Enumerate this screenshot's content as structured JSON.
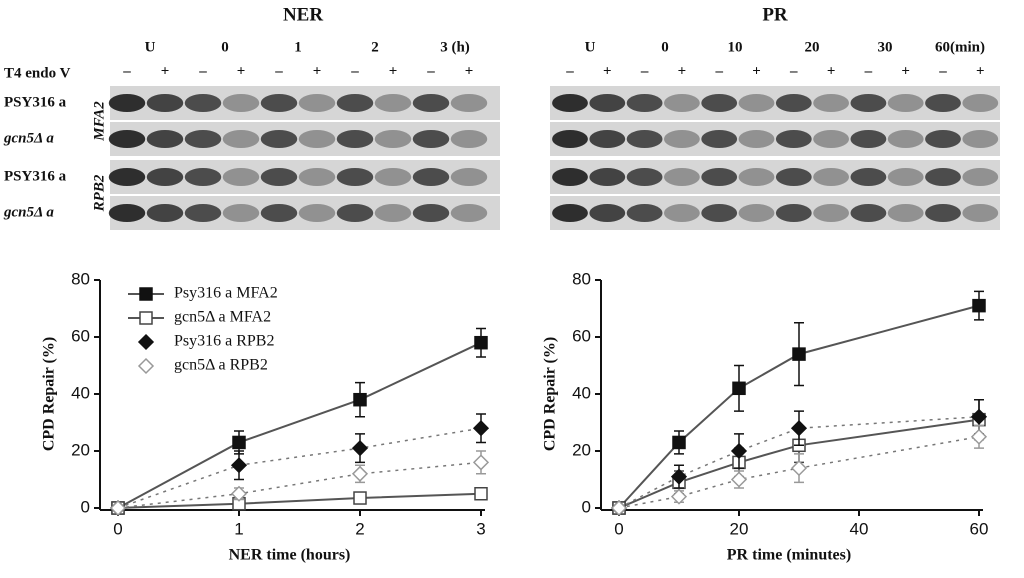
{
  "gels": {
    "treatment": {
      "label": "T4 endo V",
      "minus": "–",
      "plus": "+"
    },
    "rows": [
      "PSY316 a",
      "gcn5Δ a",
      "PSY316 a",
      "gcn5Δ a"
    ],
    "genes": [
      "MFA2",
      "RPB2"
    ],
    "panels": [
      {
        "title": "NER",
        "lanes": [
          "U",
          "0",
          "1",
          "2",
          "3 (h)"
        ]
      },
      {
        "title": "PR",
        "lanes": [
          "U",
          "0",
          "10",
          "20",
          "30",
          "60(min)"
        ]
      }
    ]
  },
  "chart_data": [
    {
      "type": "line",
      "xlabel": "NER time (hours)",
      "ylabel": "CPD Repair (%)",
      "x": [
        0,
        1,
        2,
        3
      ],
      "xlim": [
        0,
        3
      ],
      "xticks": [
        0,
        1,
        2,
        3
      ],
      "ylim": [
        0,
        80
      ],
      "yticks": [
        0,
        20,
        40,
        60,
        80
      ],
      "legend": "upper left",
      "series": [
        {
          "name": "Psy316 a MFA2",
          "color": "#111111",
          "marker": "square",
          "filled": true,
          "line": "solid",
          "values": [
            0,
            23,
            38,
            58
          ],
          "errors": [
            0,
            4,
            6,
            5
          ]
        },
        {
          "name": "gcn5Δ a MFA2",
          "color": "#444444",
          "marker": "square",
          "filled": false,
          "line": "solid",
          "values": [
            0,
            1.5,
            3.5,
            5
          ],
          "errors": [
            0,
            2,
            2,
            2
          ]
        },
        {
          "name": "Psy316 a RPB2",
          "color": "#111111",
          "marker": "diamond",
          "filled": true,
          "line": "dotted",
          "values": [
            0,
            15,
            21,
            28
          ],
          "errors": [
            0,
            5,
            5,
            5
          ]
        },
        {
          "name": "gcn5Δ a RPB2",
          "color": "#999999",
          "marker": "diamond",
          "filled": false,
          "line": "dotted",
          "values": [
            0,
            5,
            12,
            16
          ],
          "errors": [
            0,
            2,
            3,
            4
          ]
        }
      ]
    },
    {
      "type": "line",
      "xlabel": "PR time (minutes)",
      "ylabel": "CPD Repair (%)",
      "x": [
        0,
        10,
        20,
        30,
        60
      ],
      "xlim": [
        0,
        60
      ],
      "xticks": [
        0,
        20,
        40,
        60
      ],
      "ylim": [
        0,
        80
      ],
      "yticks": [
        0,
        20,
        40,
        60,
        80
      ],
      "series": [
        {
          "color": "#111111",
          "marker": "square",
          "filled": true,
          "line": "solid",
          "values": [
            0,
            23,
            42,
            54,
            71
          ],
          "errors": [
            0,
            4,
            8,
            11,
            5
          ]
        },
        {
          "color": "#444444",
          "marker": "square",
          "filled": false,
          "line": "solid",
          "values": [
            0,
            9,
            16,
            22,
            31
          ],
          "errors": [
            0,
            4,
            5,
            6,
            7
          ]
        },
        {
          "color": "#111111",
          "marker": "diamond",
          "filled": true,
          "line": "dotted",
          "values": [
            0,
            11,
            20,
            28,
            32
          ],
          "errors": [
            0,
            4,
            6,
            6,
            6
          ]
        },
        {
          "color": "#999999",
          "marker": "diamond",
          "filled": false,
          "line": "dotted",
          "values": [
            0,
            4,
            10,
            14,
            25
          ],
          "errors": [
            0,
            2,
            3,
            5,
            4
          ]
        }
      ]
    }
  ]
}
